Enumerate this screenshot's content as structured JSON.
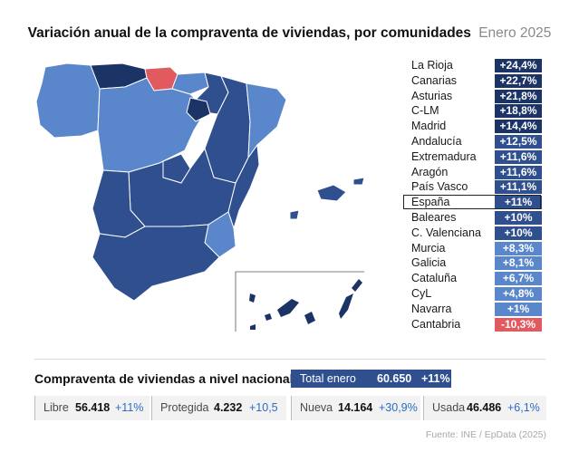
{
  "header": {
    "title": "Variación anual de la compraventa de viviendas, por comunidades",
    "subtitle": "Enero 2025"
  },
  "colors": {
    "dark": "#1c3366",
    "mid": "#2f4f8f",
    "light": "#5a86cc",
    "negative": "#e05a5f"
  },
  "chart_data": {
    "type": "table",
    "title": "Variación anual de la compraventa de viviendas, por comunidades",
    "subtitle": "Enero 2025",
    "rows": [
      {
        "name": "La Rioja",
        "label": "+24,4%",
        "value": 24.4
      },
      {
        "name": "Canarias",
        "label": "+22,7%",
        "value": 22.7
      },
      {
        "name": "Asturias",
        "label": "+21,8%",
        "value": 21.8
      },
      {
        "name": "C-LM",
        "label": "+18,8%",
        "value": 18.8
      },
      {
        "name": "Madrid",
        "label": "+14,4%",
        "value": 14.4
      },
      {
        "name": "Andalucía",
        "label": "+12,5%",
        "value": 12.5
      },
      {
        "name": "Extremadura",
        "label": "+11,6%",
        "value": 11.6
      },
      {
        "name": "Aragón",
        "label": "+11,6%",
        "value": 11.6
      },
      {
        "name": "País Vasco",
        "label": "+11,1%",
        "value": 11.1
      },
      {
        "name": "España",
        "label": "+11%",
        "value": 11,
        "highlight": true
      },
      {
        "name": "Baleares",
        "label": "+10%",
        "value": 10
      },
      {
        "name": "C. Valenciana",
        "label": "+10%",
        "value": 10
      },
      {
        "name": "Murcia",
        "label": "+8,3%",
        "value": 8.3
      },
      {
        "name": "Galicia",
        "label": "+8,1%",
        "value": 8.1
      },
      {
        "name": "Cataluña",
        "label": "+6,7%",
        "value": 6.7
      },
      {
        "name": "CyL",
        "label": "+4,8%",
        "value": 4.8
      },
      {
        "name": "Navarra",
        "label": "+1%",
        "value": 1
      },
      {
        "name": "Cantabria",
        "label": "-10,3%",
        "value": -10.3
      }
    ]
  },
  "national": {
    "title": "Compraventa de viviendas a nivel nacional",
    "total": {
      "label": "Total enero",
      "value": "60.650",
      "change": "+11%"
    },
    "stats": [
      {
        "label": "Libre",
        "value": "56.418",
        "change": "+11%"
      },
      {
        "label": "Protegida",
        "value": "4.232",
        "change": "+10,5"
      },
      {
        "label": "Nueva",
        "value": "14.164",
        "change": "+30,9%"
      },
      {
        "label": "Usada",
        "value": "46.486",
        "change": "+6,1%"
      }
    ]
  },
  "source": "Fuente: INE / EpData (2025)"
}
